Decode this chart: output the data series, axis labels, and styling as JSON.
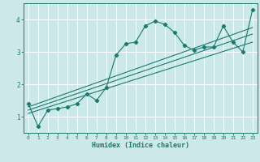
{
  "xlabel": "Humidex (Indice chaleur)",
  "ylabel": "",
  "bg_color": "#cce8e8",
  "line_color": "#1a7a6e",
  "grid_color": "#ffffff",
  "xlim": [
    -0.5,
    23.5
  ],
  "ylim": [
    0.5,
    4.5
  ],
  "yticks": [
    1,
    2,
    3,
    4
  ],
  "xticks": [
    0,
    1,
    2,
    3,
    4,
    5,
    6,
    7,
    8,
    9,
    10,
    11,
    12,
    13,
    14,
    15,
    16,
    17,
    18,
    19,
    20,
    21,
    22,
    23
  ],
  "series1_x": [
    0,
    1,
    2,
    3,
    4,
    5,
    6,
    7,
    8,
    9,
    10,
    11,
    12,
    13,
    14,
    15,
    16,
    17,
    18,
    19,
    20,
    21,
    22,
    23
  ],
  "series1_y": [
    1.4,
    0.7,
    1.2,
    1.25,
    1.3,
    1.4,
    1.7,
    1.5,
    1.9,
    2.9,
    3.25,
    3.3,
    3.8,
    3.95,
    3.85,
    3.6,
    3.2,
    3.05,
    3.15,
    3.15,
    3.8,
    3.3,
    3.0,
    4.3
  ],
  "regline1_x": [
    0,
    23
  ],
  "regline1_y": [
    1.1,
    3.3
  ],
  "regline2_x": [
    0,
    23
  ],
  "regline2_y": [
    1.2,
    3.55
  ],
  "regline3_x": [
    0,
    23
  ],
  "regline3_y": [
    1.3,
    3.75
  ]
}
